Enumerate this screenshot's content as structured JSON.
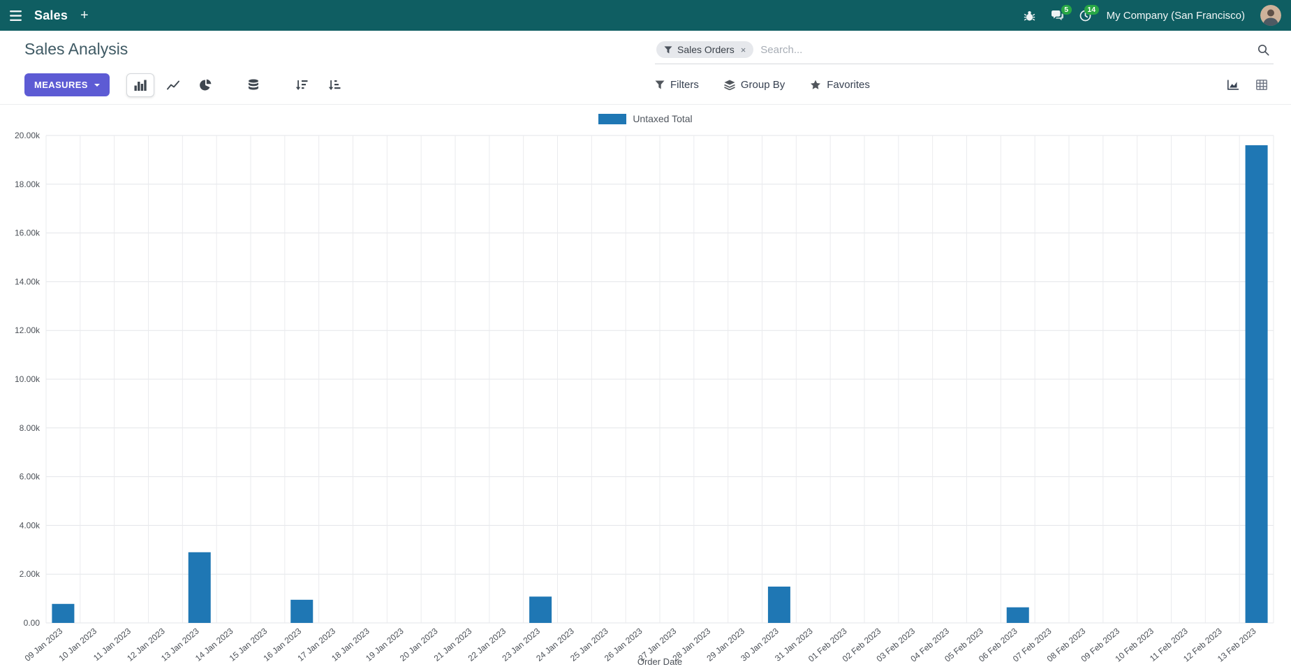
{
  "colors": {
    "navbar_bg": "#0f5e62",
    "accent": "#5d5bd4",
    "badge": "#28a745",
    "bar": "#1f77b4"
  },
  "navbar": {
    "app_name": "Sales",
    "plus_label": "+",
    "message_badge": "5",
    "activity_badge": "14",
    "company": "My Company (San Francisco)"
  },
  "control_panel": {
    "title": "Sales Analysis",
    "measures_button": "MEASURES",
    "search": {
      "facet_label": "Sales Orders",
      "facet_remove": "×",
      "placeholder": "Search..."
    },
    "filter_menus": {
      "filters": "Filters",
      "group_by": "Group By",
      "favorites": "Favorites"
    }
  },
  "chart_data": {
    "type": "bar",
    "title": "",
    "xlabel": "Order Date",
    "ylabel": "",
    "ylim": [
      0,
      20000
    ],
    "grid": true,
    "legend_position": "top",
    "y_ticks": [
      "0.00",
      "2.00k",
      "4.00k",
      "6.00k",
      "8.00k",
      "10.00k",
      "12.00k",
      "14.00k",
      "16.00k",
      "18.00k",
      "20.00k"
    ],
    "categories": [
      "09 Jan 2023",
      "10 Jan 2023",
      "11 Jan 2023",
      "12 Jan 2023",
      "13 Jan 2023",
      "14 Jan 2023",
      "15 Jan 2023",
      "16 Jan 2023",
      "17 Jan 2023",
      "18 Jan 2023",
      "19 Jan 2023",
      "20 Jan 2023",
      "21 Jan 2023",
      "22 Jan 2023",
      "23 Jan 2023",
      "24 Jan 2023",
      "25 Jan 2023",
      "26 Jan 2023",
      "27 Jan 2023",
      "28 Jan 2023",
      "29 Jan 2023",
      "30 Jan 2023",
      "31 Jan 2023",
      "01 Feb 2023",
      "02 Feb 2023",
      "03 Feb 2023",
      "04 Feb 2023",
      "05 Feb 2023",
      "06 Feb 2023",
      "07 Feb 2023",
      "08 Feb 2023",
      "09 Feb 2023",
      "10 Feb 2023",
      "11 Feb 2023",
      "12 Feb 2023",
      "13 Feb 2023"
    ],
    "series": [
      {
        "name": "Untaxed Total",
        "color": "#1f77b4",
        "values": [
          780,
          0,
          0,
          0,
          2900,
          0,
          0,
          950,
          0,
          0,
          0,
          0,
          0,
          0,
          1080,
          0,
          0,
          0,
          0,
          0,
          0,
          1490,
          0,
          0,
          0,
          0,
          0,
          0,
          640,
          0,
          0,
          0,
          0,
          0,
          0,
          19600
        ]
      }
    ]
  }
}
